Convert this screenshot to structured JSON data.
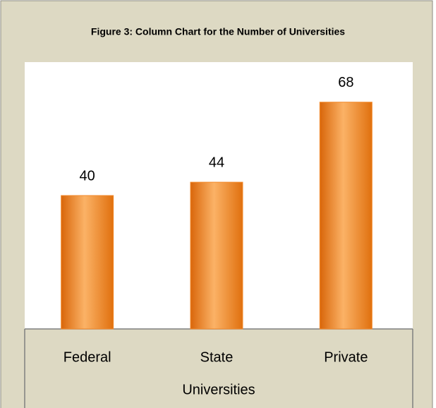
{
  "chart_data": {
    "type": "bar",
    "title": "Figure 3: Column Chart for the Number of Universities",
    "categories": [
      "Federal",
      "State",
      "Private"
    ],
    "values": [
      40,
      44,
      68
    ],
    "color": "#f28a2c",
    "x_label": "Universities",
    "ylim": [
      0,
      80
    ]
  }
}
